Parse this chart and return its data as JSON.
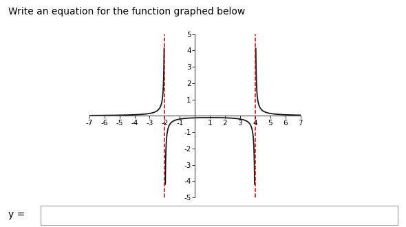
{
  "title": "Write an equation for the function graphed below",
  "title_fontsize": 10,
  "xmin": -7,
  "xmax": 7,
  "ymin": -5,
  "ymax": 5,
  "xticks": [
    -7,
    -6,
    -5,
    -4,
    -3,
    -2,
    -1,
    1,
    2,
    3,
    4,
    5,
    6,
    7
  ],
  "yticks": [
    -5,
    -4,
    -3,
    -2,
    -1,
    1,
    2,
    3,
    4,
    5
  ],
  "xtick_labels": [
    "-7",
    "-6",
    "-5",
    "-4",
    "-3",
    "-2",
    "-1",
    "1",
    "2",
    "3",
    "4",
    "5",
    "6",
    "7"
  ],
  "ytick_labels": [
    "-5",
    "-4",
    "-3",
    "-2",
    "-1",
    "1",
    "2",
    "3",
    "4",
    "5"
  ],
  "asymptote1": -2,
  "asymptote2": 4,
  "curve_color": "#1a1a1a",
  "asymptote_color": "#cc0000",
  "bg_color": "#ffffff",
  "ylabel_input": "y =",
  "input_box_color": "#ffffff",
  "input_box_border": "#999999",
  "axis_color": "#555555",
  "tick_fontsize": 7.5
}
